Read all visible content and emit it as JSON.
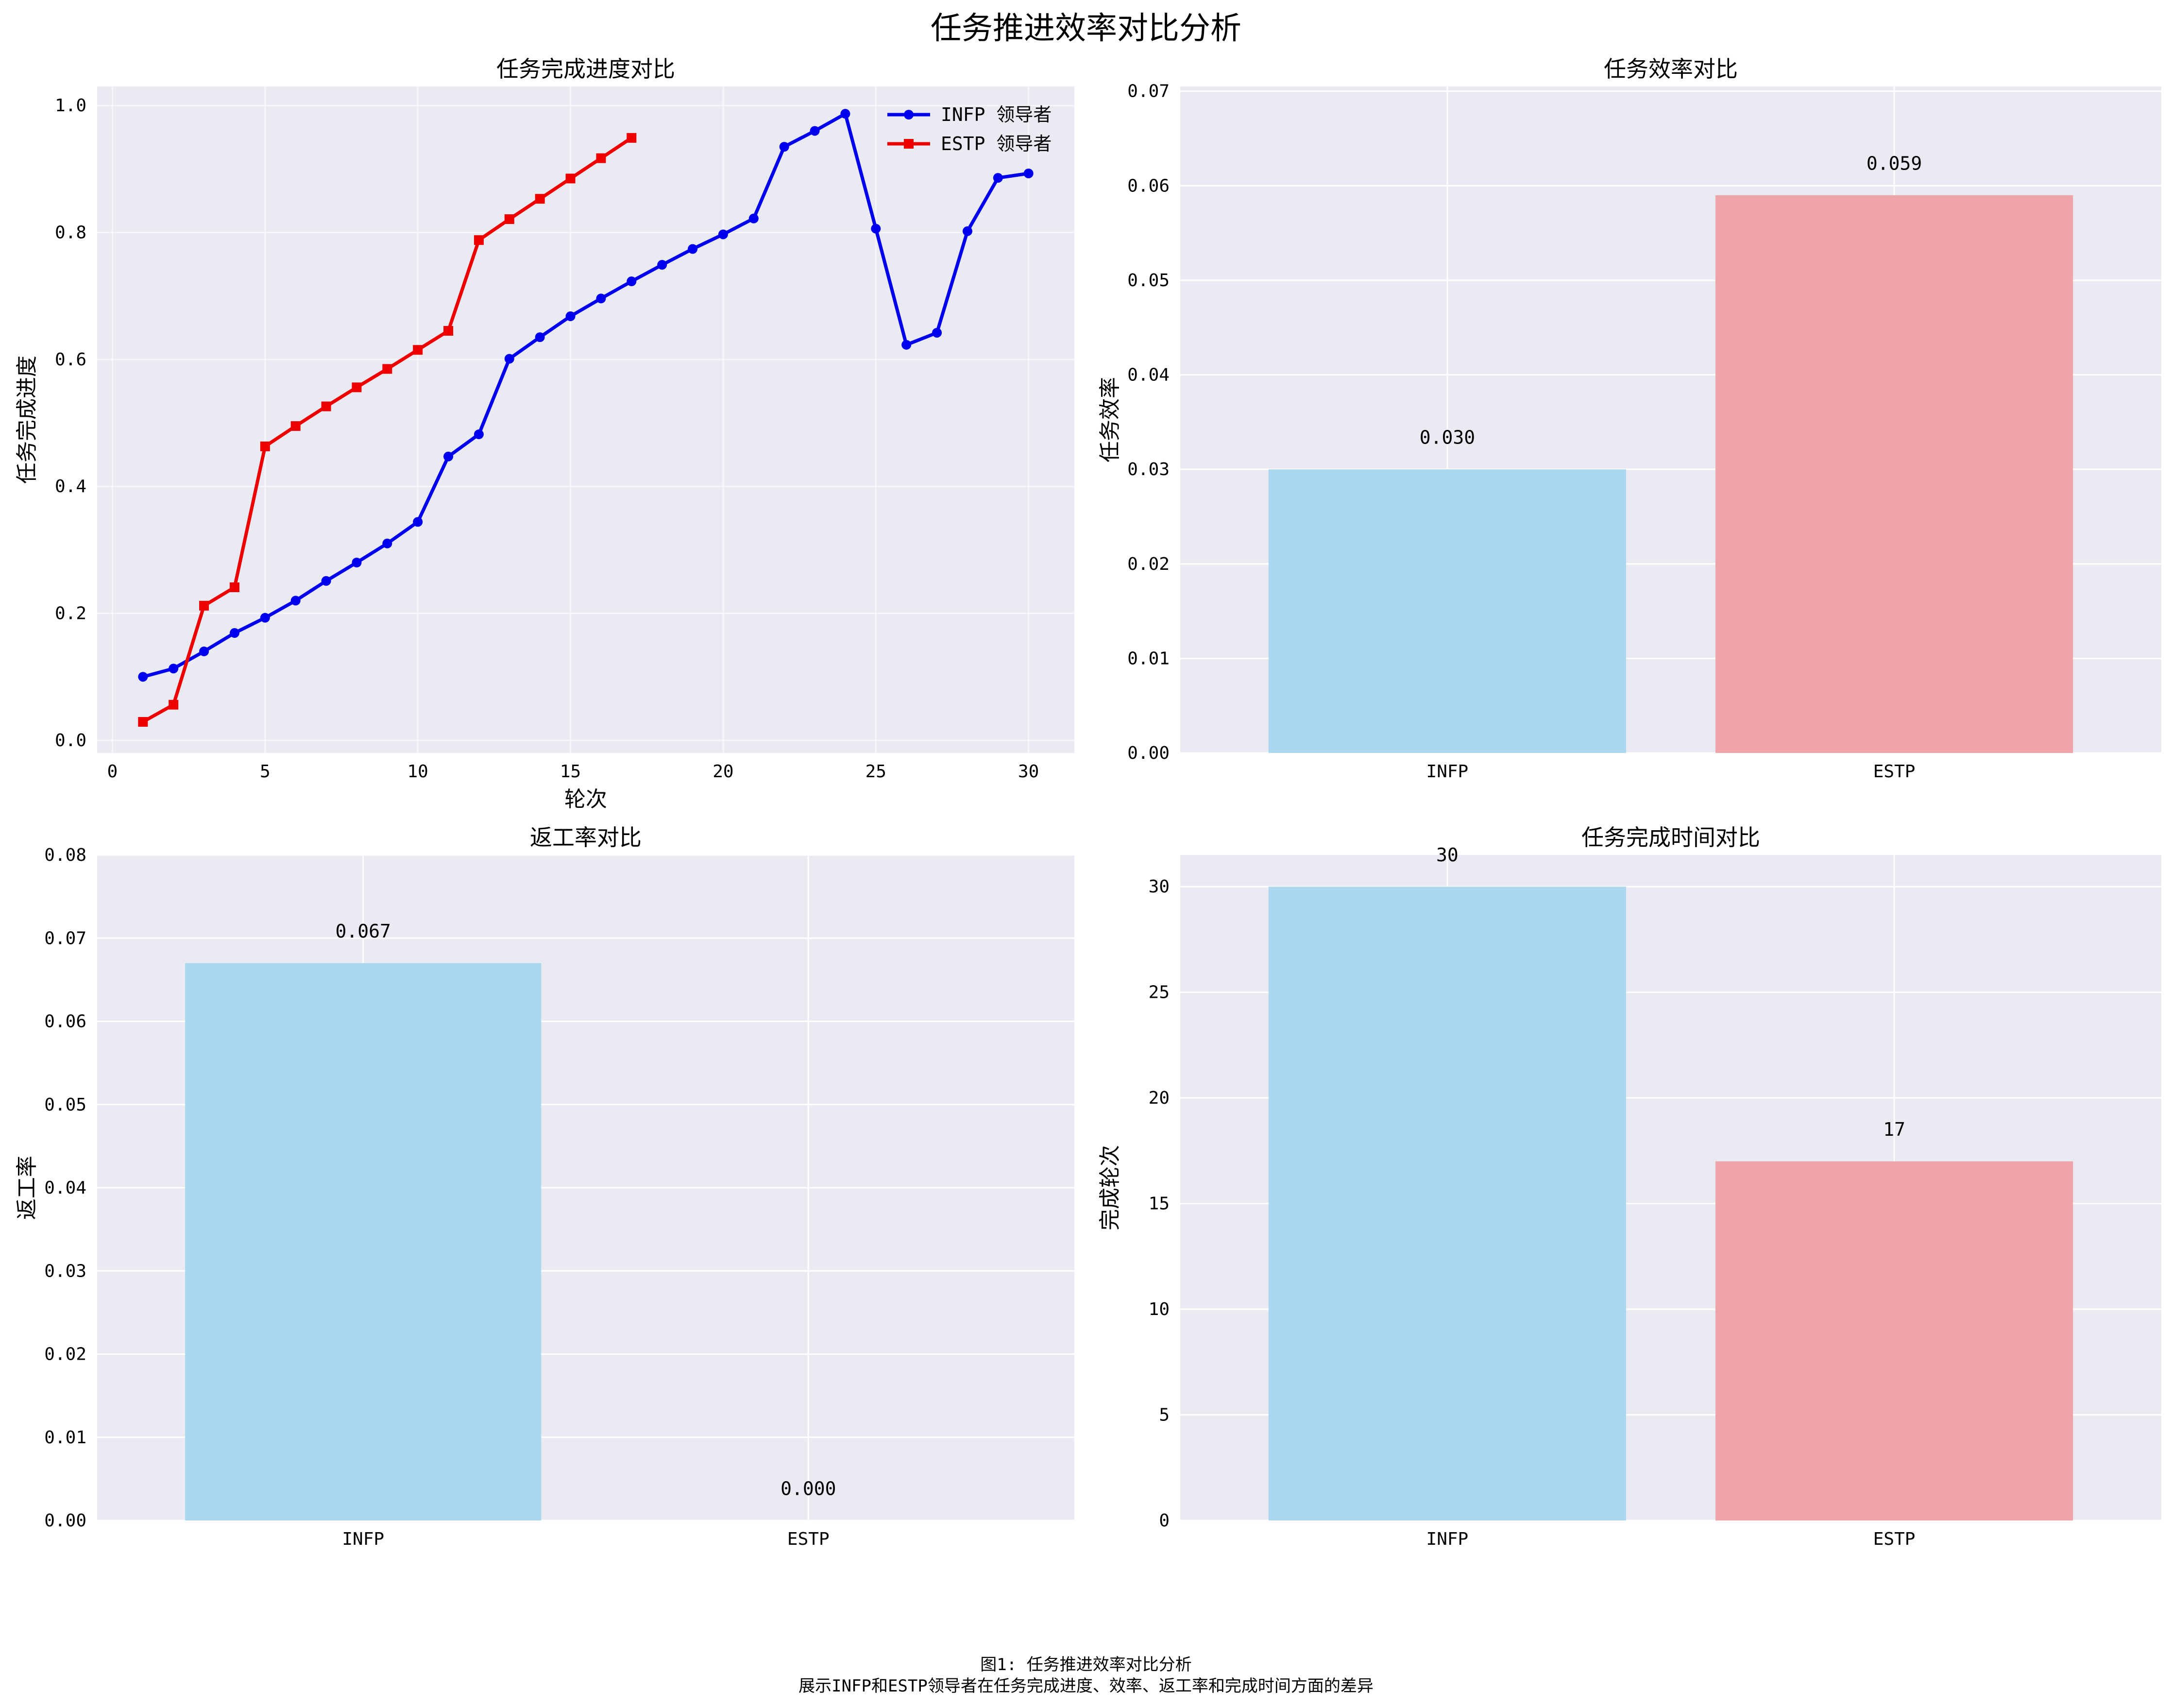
{
  "suptitle": "任务推进效率对比分析",
  "caption": {
    "line1": "图1: 任务推进效率对比分析",
    "line2": "展示INFP和ESTP领导者在任务完成进度、效率、返工率和完成时间方面的差异"
  },
  "colors": {
    "panel_bg": "#eaeaf2",
    "grid": "#ffffff",
    "infp_line": "#0000ee",
    "estp_line": "#ee0000",
    "infp_bar": "#a8d6ee",
    "estp_bar": "#eea0a3"
  },
  "chart_data": [
    {
      "type": "line",
      "title": "任务完成进度对比",
      "xlabel": "轮次",
      "ylabel": "任务完成进度",
      "xlim": [
        -0.5,
        31.5
      ],
      "ylim": [
        -0.02,
        1.03
      ],
      "xticks": [
        0,
        5,
        10,
        15,
        20,
        25,
        30
      ],
      "yticks": [
        0.0,
        0.2,
        0.4,
        0.6,
        0.8,
        1.0
      ],
      "ytick_labels": [
        "0.0",
        "0.2",
        "0.4",
        "0.6",
        "0.8",
        "1.0"
      ],
      "grid": true,
      "legend": "top-right",
      "series": [
        {
          "name": "INFP 领导者",
          "marker": "circle",
          "x": [
            1,
            2,
            3,
            4,
            5,
            6,
            7,
            8,
            9,
            10,
            11,
            12,
            13,
            14,
            15,
            16,
            17,
            18,
            19,
            20,
            21,
            22,
            23,
            24,
            25,
            26,
            27,
            28,
            29,
            30
          ],
          "y": [
            0.1,
            0.113,
            0.14,
            0.169,
            0.193,
            0.22,
            0.251,
            0.28,
            0.31,
            0.344,
            0.447,
            0.482,
            0.601,
            0.635,
            0.668,
            0.696,
            0.723,
            0.749,
            0.774,
            0.797,
            0.822,
            0.935,
            0.96,
            0.987,
            0.806,
            0.623,
            0.642,
            0.802,
            0.886,
            0.893
          ]
        },
        {
          "name": "ESTP 领导者",
          "marker": "square",
          "x": [
            1,
            2,
            3,
            4,
            5,
            6,
            7,
            8,
            9,
            10,
            11,
            12,
            13,
            14,
            15,
            16,
            17
          ],
          "y": [
            0.029,
            0.056,
            0.212,
            0.241,
            0.463,
            0.495,
            0.526,
            0.556,
            0.585,
            0.615,
            0.645,
            0.788,
            0.821,
            0.853,
            0.885,
            0.917,
            0.949
          ]
        }
      ]
    },
    {
      "type": "bar",
      "title": "任务效率对比",
      "xlabel": "",
      "ylabel": "任务效率",
      "categories": [
        "INFP",
        "ESTP"
      ],
      "values": [
        0.03,
        0.059
      ],
      "value_labels": [
        "0.030",
        "0.059"
      ],
      "ylim": [
        0,
        0.0705
      ],
      "yticks": [
        0.0,
        0.01,
        0.02,
        0.03,
        0.04,
        0.05,
        0.06,
        0.07
      ],
      "ytick_labels": [
        "0.00",
        "0.01",
        "0.02",
        "0.03",
        "0.04",
        "0.05",
        "0.06",
        "0.07"
      ],
      "grid": true
    },
    {
      "type": "bar",
      "title": "返工率对比",
      "xlabel": "",
      "ylabel": "返工率",
      "categories": [
        "INFP",
        "ESTP"
      ],
      "values": [
        0.067,
        0.0
      ],
      "value_labels": [
        "0.067",
        "0.000"
      ],
      "ylim": [
        0,
        0.08
      ],
      "yticks": [
        0.0,
        0.01,
        0.02,
        0.03,
        0.04,
        0.05,
        0.06,
        0.07,
        0.08
      ],
      "ytick_labels": [
        "0.00",
        "0.01",
        "0.02",
        "0.03",
        "0.04",
        "0.05",
        "0.06",
        "0.07",
        "0.08"
      ],
      "grid": true
    },
    {
      "type": "bar",
      "title": "任务完成时间对比",
      "xlabel": "",
      "ylabel": "完成轮次",
      "categories": [
        "INFP",
        "ESTP"
      ],
      "values": [
        30,
        17
      ],
      "value_labels": [
        "30",
        "17"
      ],
      "ylim": [
        0,
        31.5
      ],
      "yticks": [
        0,
        5,
        10,
        15,
        20,
        25,
        30
      ],
      "ytick_labels": [
        "0",
        "5",
        "10",
        "15",
        "20",
        "25",
        "30"
      ],
      "grid": true
    }
  ]
}
